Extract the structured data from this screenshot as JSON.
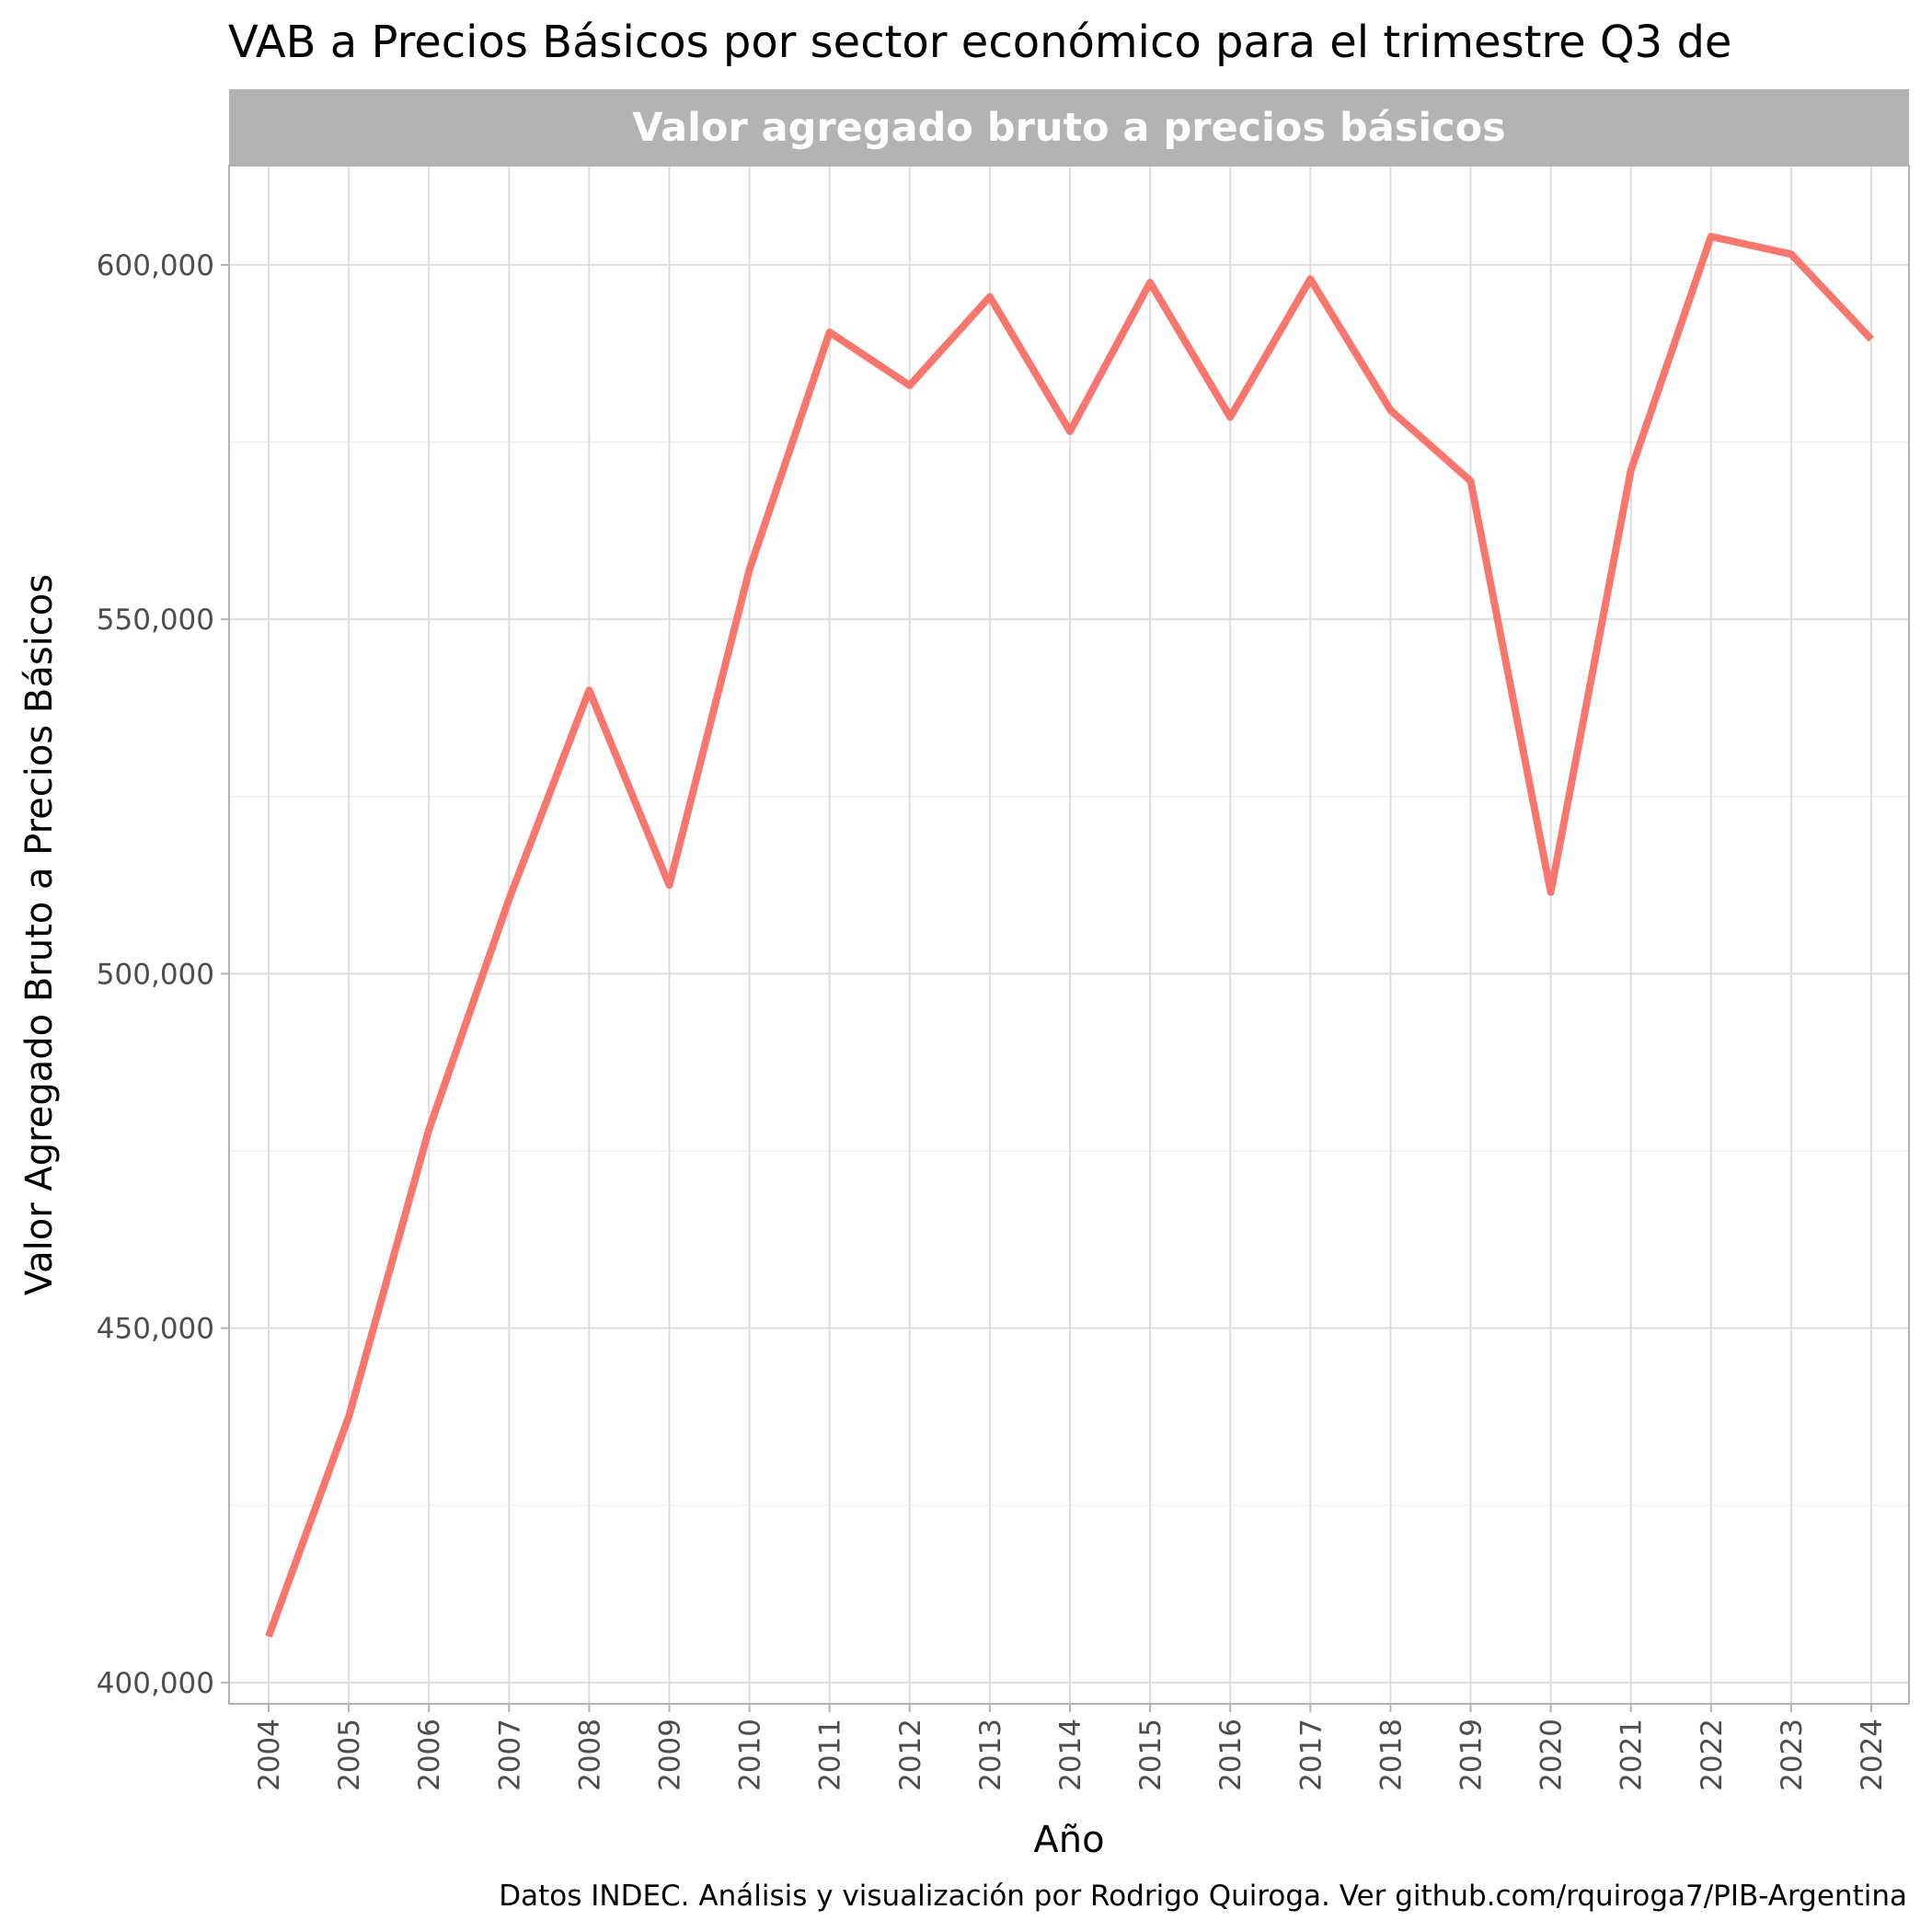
{
  "chart_data": {
    "type": "line",
    "title": "VAB a Precios Básicos por sector económico para el trimestre Q3 de",
    "facet_label": "Valor agregado bruto a precios básicos",
    "xlabel": "Año",
    "ylabel": "Valor Agregado Bruto a Precios Básicos",
    "caption": "Datos INDEC. Análisis y visualización por Rodrigo Quiroga. Ver github.com/rquiroga7/PIB-Argentina",
    "ylim": [
      397000,
      614000
    ],
    "y_ticks": [
      400000,
      450000,
      500000,
      550000,
      600000
    ],
    "y_tick_labels": [
      "400,000",
      "450,000",
      "500,000",
      "550,000",
      "600,000"
    ],
    "x": [
      "2004",
      "2005",
      "2006",
      "2007",
      "2008",
      "2009",
      "2010",
      "2011",
      "2012",
      "2013",
      "2014",
      "2015",
      "2016",
      "2017",
      "2018",
      "2019",
      "2020",
      "2021",
      "2022",
      "2023",
      "2024"
    ],
    "series": [
      {
        "color": "#f8766d",
        "values": [
          406500,
          437500,
          478000,
          510500,
          540000,
          512500,
          557000,
          590500,
          583000,
          595500,
          576500,
          597500,
          578500,
          598000,
          579500,
          569500,
          511500,
          571000,
          604000,
          601500,
          589500
        ]
      }
    ],
    "grid": true,
    "legend": "none"
  }
}
